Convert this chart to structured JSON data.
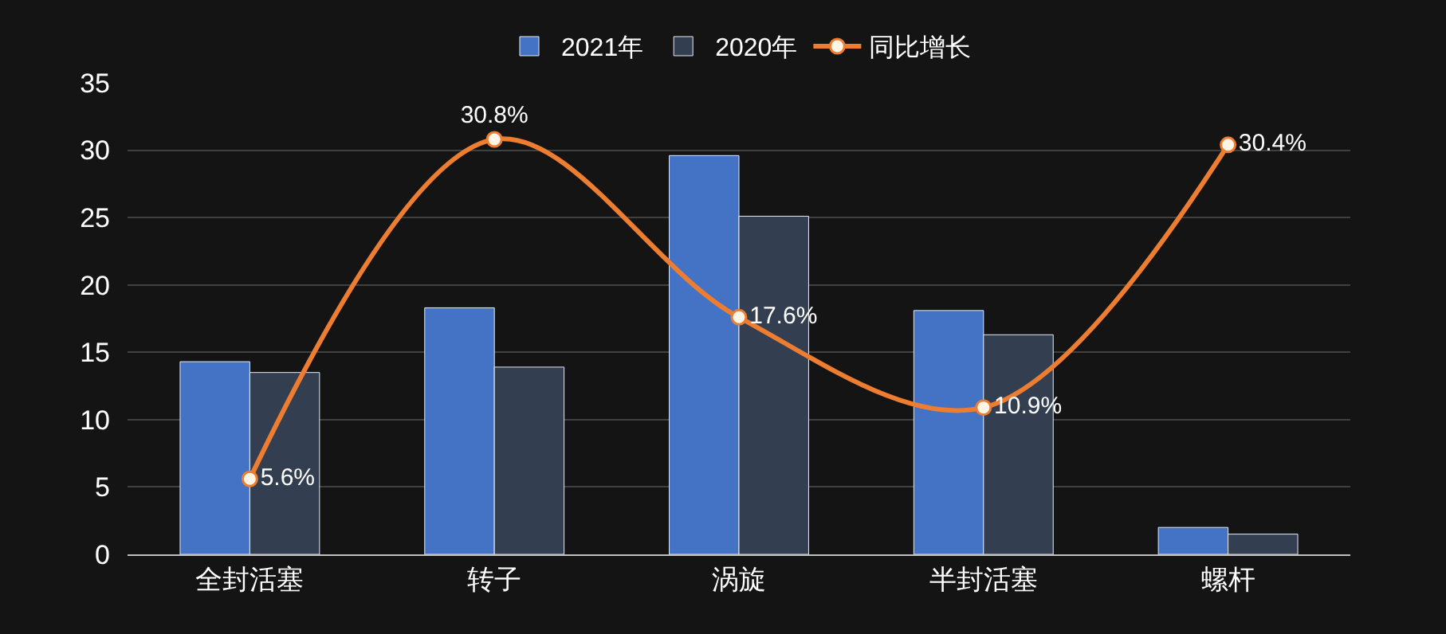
{
  "chart_data": {
    "type": "bar",
    "categories": [
      "全封活塞",
      "转子",
      "涡旋",
      "半封活塞",
      "螺杆"
    ],
    "series": [
      {
        "name": "2021年",
        "color": "#4472c4",
        "values": [
          14.3,
          18.3,
          29.6,
          18.1,
          2.0
        ]
      },
      {
        "name": "2020年",
        "color": "#333f50",
        "values": [
          13.5,
          13.9,
          25.1,
          16.3,
          1.5
        ]
      },
      {
        "name": "同比增长",
        "type": "line",
        "color": "#ed7d31",
        "marker": "circle",
        "values": [
          5.6,
          30.8,
          17.6,
          10.9,
          30.4
        ],
        "value_labels": [
          "5.6%",
          "30.8%",
          "17.6%",
          "10.9%",
          "30.4%"
        ]
      }
    ],
    "ylim": [
      0,
      35
    ],
    "yticks": [
      0,
      5,
      10,
      15,
      20,
      25,
      30,
      35
    ],
    "grid": "y",
    "legend": "top"
  }
}
